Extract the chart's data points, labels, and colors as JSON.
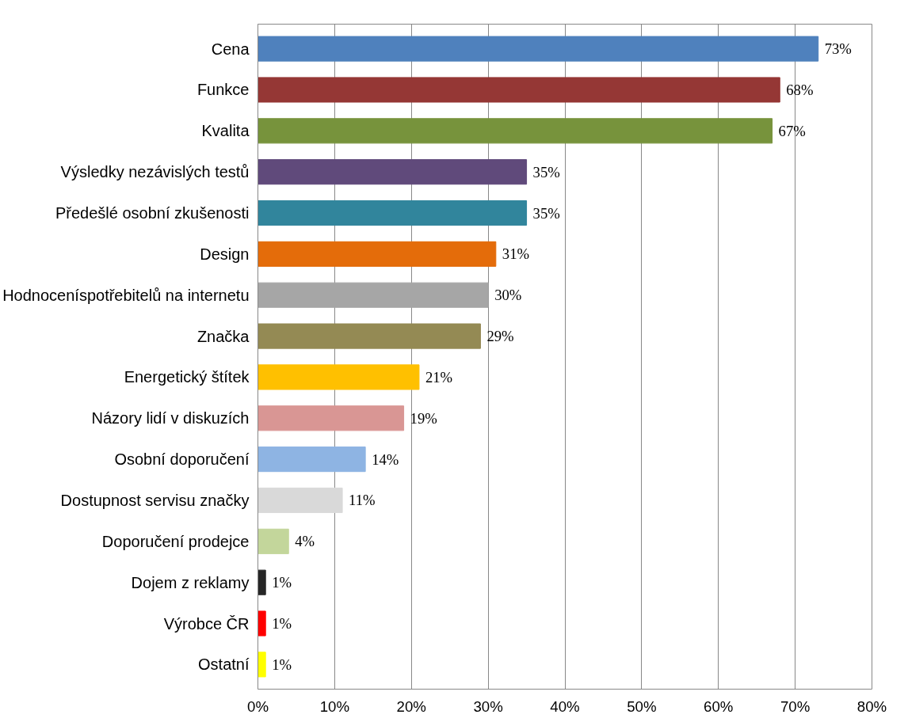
{
  "chart_data": {
    "type": "bar",
    "orientation": "horizontal",
    "categories": [
      "Cena",
      "Funkce",
      "Kvalita",
      "Výsledky nezávislých testů",
      "Předešlé osobní zkušenosti",
      "Design",
      "Hodnoceníspotřebitelů na internetu",
      "Značka",
      "Energetický štítek",
      "Názory lidí v diskuzích",
      "Osobní doporučení",
      "Dostupnost servisu značky",
      "Doporučení prodejce",
      "Dojem z reklamy",
      "Výrobce ČR",
      "Ostatní"
    ],
    "values": [
      73,
      68,
      67,
      35,
      35,
      31,
      30,
      29,
      21,
      19,
      14,
      11,
      4,
      1,
      1,
      1
    ],
    "value_labels": [
      "73%",
      "68%",
      "67%",
      "35%",
      "35%",
      "31%",
      "30%",
      "29%",
      "21%",
      "19%",
      "14%",
      "11%",
      "4%",
      "1%",
      "1%",
      "1%"
    ],
    "colors": [
      "#4f81bd",
      "#953735",
      "#77933c",
      "#604a7b",
      "#31859c",
      "#e46c0a",
      "#a6a6a6",
      "#948a54",
      "#ffc000",
      "#d99694",
      "#8eb4e3",
      "#d9d9d9",
      "#c3d69b",
      "#262626",
      "#ff0000",
      "#ffff00"
    ],
    "xlim": [
      0,
      80
    ],
    "xticks": [
      {
        "value": 0,
        "label": "0%"
      },
      {
        "value": 10,
        "label": "10%"
      },
      {
        "value": 20,
        "label": "20%"
      },
      {
        "value": 30,
        "label": "30%"
      },
      {
        "value": 40,
        "label": "40%"
      },
      {
        "value": 50,
        "label": "50%"
      },
      {
        "value": 60,
        "label": "60%"
      },
      {
        "value": 70,
        "label": "70%"
      },
      {
        "value": 80,
        "label": "80%"
      }
    ],
    "grid": "x"
  }
}
